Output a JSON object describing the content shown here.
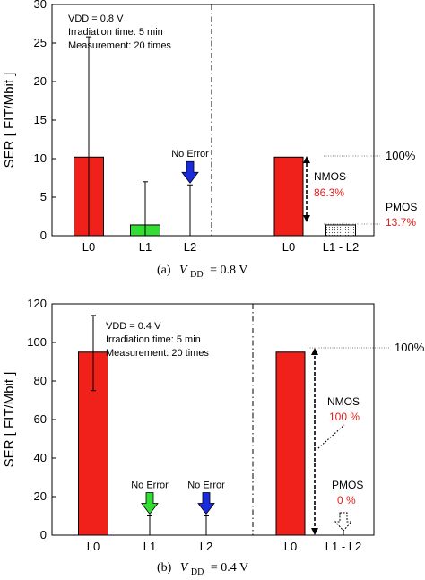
{
  "chart_data": [
    {
      "type": "bar",
      "ylabel": "SER [ FIT/Mbit ]",
      "ylim": [
        0,
        30
      ],
      "yticks": [
        0,
        5,
        10,
        15,
        20,
        25,
        30
      ],
      "categories": [
        "L0",
        "L1",
        "L2",
        "L0",
        "L1 - L2"
      ],
      "values": [
        10.2,
        1.4,
        0,
        10.2,
        1.4
      ],
      "error_high": [
        25.8,
        7.0,
        6.6,
        null,
        null
      ],
      "error_low": [
        0,
        0,
        0,
        null,
        null
      ],
      "bar_colors": [
        "#f0201a",
        "#33dd33",
        null,
        "#f0201a",
        "pattern"
      ],
      "conditions": [
        "VDD = 0.8 V",
        "Irradiation time: 5 min",
        "Measurement: 20 times"
      ],
      "arrows": [
        {
          "category": "L2",
          "label": "No Error",
          "color": "#1a2bdd"
        }
      ],
      "breakdown": {
        "reference_label": "100%",
        "nmos_label": "NMOS",
        "nmos_pct": "86.3%",
        "pmos_label": "PMOS",
        "pmos_pct": "13.7%"
      },
      "caption_prefix": "(a)",
      "caption_main": "V",
      "caption_sub": "DD",
      "caption_suffix": "= 0.8  V"
    },
    {
      "type": "bar",
      "ylabel": "SER [ FIT/Mbit ]",
      "ylim": [
        0,
        120
      ],
      "yticks": [
        0,
        20,
        40,
        60,
        80,
        100,
        120
      ],
      "categories": [
        "L0",
        "L1",
        "L2",
        "L0",
        "L1 - L2"
      ],
      "values": [
        95,
        0,
        0,
        95,
        0
      ],
      "error_high": [
        114,
        10,
        10,
        null,
        null
      ],
      "error_low": [
        75,
        0,
        0,
        null,
        null
      ],
      "bar_colors": [
        "#f0201a",
        null,
        null,
        "#f0201a",
        null
      ],
      "conditions": [
        "VDD = 0.4 V",
        "Irradiation time: 5 min",
        "Measurement: 20 times"
      ],
      "arrows": [
        {
          "category": "L1",
          "label": "No Error",
          "color": "#33dd33"
        },
        {
          "category": "L2",
          "label": "No Error",
          "color": "#1a2bdd"
        }
      ],
      "breakdown": {
        "reference_label": "100%",
        "nmos_label": "NMOS",
        "nmos_pct": "100 %",
        "pmos_label": "PMOS",
        "pmos_pct": "0 %"
      },
      "caption_prefix": "(b)",
      "caption_main": "V",
      "caption_sub": "DD",
      "caption_suffix": "= 0.4  V"
    }
  ]
}
